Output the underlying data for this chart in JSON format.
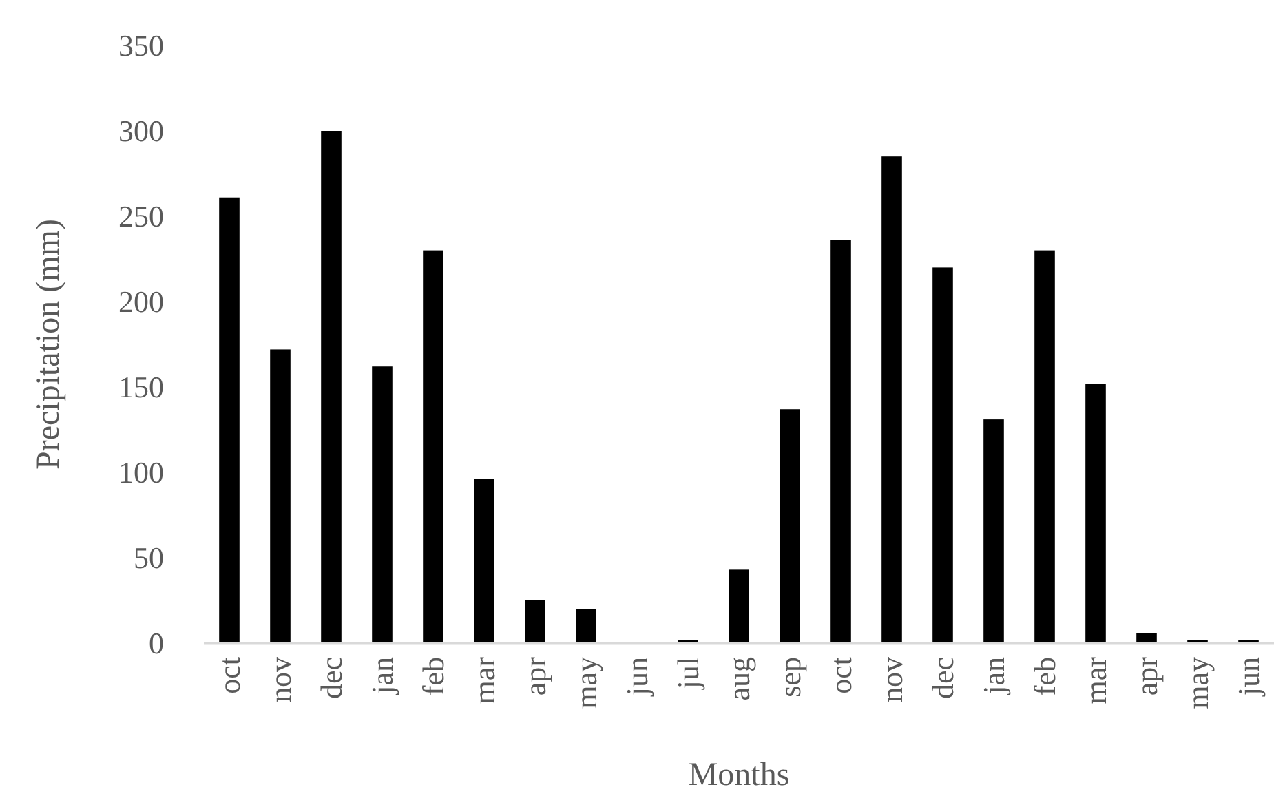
{
  "chart_data": {
    "type": "bar",
    "xlabel": "Months",
    "ylabel": "Precipitation (mm)",
    "categories": [
      "oct",
      "nov",
      "dec",
      "jan",
      "feb",
      "mar",
      "apr",
      "may",
      "jun",
      "jul",
      "aug",
      "sep",
      "oct",
      "nov",
      "dec",
      "jan",
      "feb",
      "mar",
      "apr",
      "may",
      "jun"
    ],
    "values": [
      261,
      172,
      300,
      162,
      230,
      96,
      25,
      20,
      0,
      2,
      43,
      137,
      236,
      285,
      220,
      131,
      230,
      152,
      6,
      2,
      2
    ],
    "color": "#000000",
    "ylim": [
      0,
      350
    ],
    "yticks": [
      0,
      50,
      100,
      150,
      200,
      250,
      300,
      350
    ],
    "grid": false
  }
}
